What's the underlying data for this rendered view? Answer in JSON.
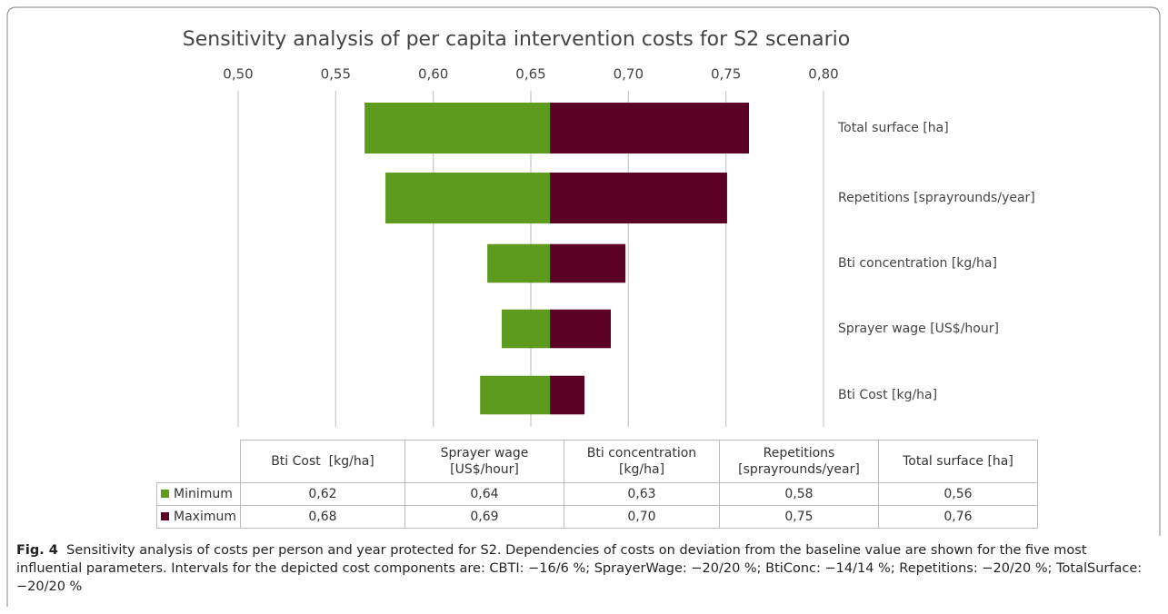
{
  "chart_data": {
    "type": "tornado",
    "title": "Sensitivity analysis of per capita intervention costs for S2 scenario",
    "categories": [
      "Bti Cost  [kg/ha]",
      "Sprayer wage [US$/hour]",
      "Bti concentration [kg/ha]",
      "Repetitions [sprayrounds/year]",
      "Total surface [ha]"
    ],
    "baseline": 0.6598,
    "series": [
      {
        "name": "Minimum",
        "color": "#5e9a1e",
        "values": [
          0.624,
          0.6351,
          0.6277,
          0.5755,
          0.5648
        ],
        "value_labels": [
          "0,62",
          "0,64",
          "0,63",
          "0,58",
          "0,56"
        ]
      },
      {
        "name": "Maximum",
        "color": "#5c0026",
        "values": [
          0.6775,
          0.691,
          0.6985,
          0.7506,
          0.7618
        ],
        "value_labels": [
          "0,68",
          "0,69",
          "0,70",
          "0,75",
          "0,76"
        ]
      }
    ],
    "xlim": [
      0.5,
      0.8
    ],
    "xticks": [
      {
        "value": 0.5,
        "label": "0,50"
      },
      {
        "value": 0.55,
        "label": "0,55"
      },
      {
        "value": 0.6,
        "label": "0,60"
      },
      {
        "value": 0.65,
        "label": "0,65"
      },
      {
        "value": 0.7,
        "label": "0,70"
      },
      {
        "value": 0.75,
        "label": "0,75"
      },
      {
        "value": 0.8,
        "label": "0,80"
      }
    ],
    "grid": true
  },
  "caption": {
    "label": "Fig. 4",
    "text": "Sensitivity analysis of costs per person and year protected for S2. Dependencies of costs on deviation from the baseline value are shown for the five most influential parameters. Intervals for the depicted cost components are: CBTI: −16/6 %; SprayerWage: −20/20 %; BtiConc: −14/14 %; Repetitions: −20/20 %; TotalSurface: −20/20 %"
  }
}
